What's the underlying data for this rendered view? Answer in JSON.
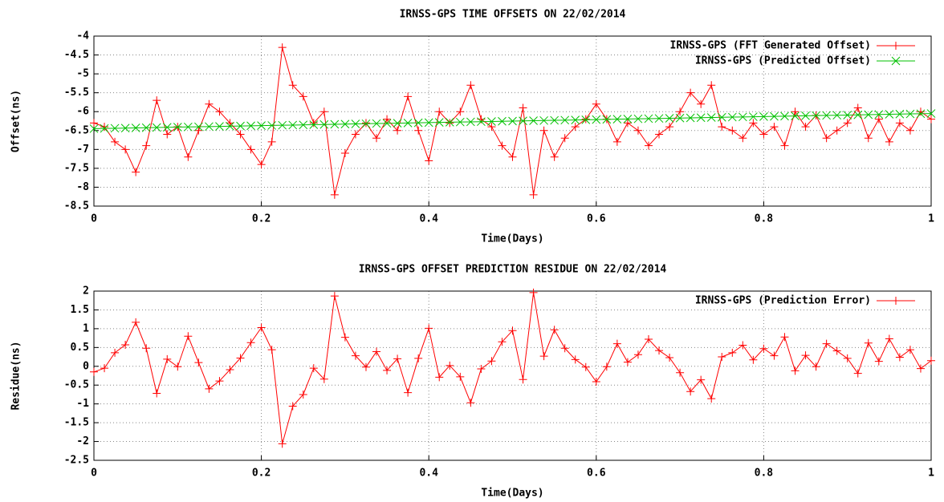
{
  "chart_data": [
    {
      "type": "line",
      "title": "IRNSS-GPS TIME OFFSETS ON 22/02/2014",
      "xlabel": "Time(Days)",
      "ylabel": "Offset(ns)",
      "x": [
        0,
        0.0125,
        0.025,
        0.0375,
        0.05,
        0.0625,
        0.075,
        0.0875,
        0.1,
        0.1125,
        0.125,
        0.1375,
        0.15,
        0.1625,
        0.175,
        0.1875,
        0.2,
        0.2125,
        0.225,
        0.2375,
        0.25,
        0.2625,
        0.275,
        0.2875,
        0.3,
        0.3125,
        0.325,
        0.3375,
        0.35,
        0.3625,
        0.375,
        0.3875,
        0.4,
        0.4125,
        0.425,
        0.4375,
        0.45,
        0.4625,
        0.475,
        0.4875,
        0.5,
        0.5125,
        0.525,
        0.5375,
        0.55,
        0.5625,
        0.575,
        0.5875,
        0.6,
        0.6125,
        0.625,
        0.6375,
        0.65,
        0.6625,
        0.675,
        0.6875,
        0.7,
        0.7125,
        0.725,
        0.7375,
        0.75,
        0.7625,
        0.775,
        0.7875,
        0.8,
        0.8125,
        0.825,
        0.8375,
        0.85,
        0.8625,
        0.875,
        0.8875,
        0.9,
        0.9125,
        0.925,
        0.9375,
        0.95,
        0.9625,
        0.975,
        0.9875,
        1
      ],
      "series": [
        {
          "name": "IRNSS-GPS (FFT Generated Offset)",
          "color": "#ff0000",
          "marker": "+",
          "values": [
            -6.3,
            -6.4,
            -6.8,
            -7.0,
            -7.6,
            -6.9,
            -5.7,
            -6.6,
            -6.4,
            -7.2,
            -6.5,
            -5.8,
            -6.0,
            -6.3,
            -6.6,
            -7.0,
            -7.4,
            -6.8,
            -4.3,
            -5.3,
            -5.6,
            -6.3,
            -6.0,
            -8.2,
            -7.1,
            -6.6,
            -6.3,
            -6.7,
            -6.2,
            -6.5,
            -5.6,
            -6.5,
            -7.3,
            -6.0,
            -6.3,
            -6.0,
            -5.3,
            -6.2,
            -6.4,
            -6.9,
            -7.2,
            -5.9,
            -8.2,
            -6.5,
            -7.2,
            -6.7,
            -6.4,
            -6.2,
            -5.8,
            -6.2,
            -6.8,
            -6.3,
            -6.5,
            -6.9,
            -6.6,
            -6.4,
            -6.0,
            -5.5,
            -5.8,
            -5.3,
            -6.4,
            -6.5,
            -6.7,
            -6.3,
            -6.6,
            -6.4,
            -6.9,
            -6.0,
            -6.4,
            -6.1,
            -6.7,
            -6.5,
            -6.3,
            -5.9,
            -6.7,
            -6.2,
            -6.8,
            -6.3,
            -6.5,
            -6.0,
            -6.2
          ]
        },
        {
          "name": "IRNSS-GPS (Predicted Offset)",
          "color": "#00c000",
          "marker": "x",
          "values": [
            -6.45,
            -6.445,
            -6.44,
            -6.435,
            -6.43,
            -6.425,
            -6.42,
            -6.415,
            -6.41,
            -6.405,
            -6.4,
            -6.395,
            -6.39,
            -6.385,
            -6.38,
            -6.375,
            -6.37,
            -6.365,
            -6.36,
            -6.355,
            -6.35,
            -6.345,
            -6.34,
            -6.335,
            -6.33,
            -6.325,
            -6.32,
            -6.315,
            -6.31,
            -6.305,
            -6.3,
            -6.295,
            -6.29,
            -6.285,
            -6.28,
            -6.275,
            -6.27,
            -6.265,
            -6.26,
            -6.255,
            -6.25,
            -6.245,
            -6.24,
            -6.235,
            -6.23,
            -6.225,
            -6.22,
            -6.215,
            -6.21,
            -6.205,
            -6.2,
            -6.195,
            -6.19,
            -6.185,
            -6.18,
            -6.175,
            -6.17,
            -6.165,
            -6.16,
            -6.155,
            -6.15,
            -6.145,
            -6.14,
            -6.135,
            -6.13,
            -6.125,
            -6.12,
            -6.115,
            -6.11,
            -6.105,
            -6.1,
            -6.095,
            -6.09,
            -6.085,
            -6.08,
            -6.075,
            -6.07,
            -6.065,
            -6.06,
            -6.055,
            -6.05
          ]
        }
      ],
      "xlim": [
        0,
        1
      ],
      "xticks": [
        0,
        0.2,
        0.4,
        0.6,
        0.8,
        1
      ],
      "ylim": [
        -8.5,
        -4
      ],
      "yticks": [
        -8.5,
        -8,
        -7.5,
        -7,
        -6.5,
        -6,
        -5.5,
        -5,
        -4.5,
        -4
      ],
      "grid": true,
      "legend": "upper right"
    },
    {
      "type": "line",
      "title": "IRNSS-GPS OFFSET PREDICTION RESIDUE ON 22/02/2014",
      "xlabel": "Time(Days)",
      "ylabel": "Residue(ns)",
      "x": [
        0,
        0.0125,
        0.025,
        0.0375,
        0.05,
        0.0625,
        0.075,
        0.0875,
        0.1,
        0.1125,
        0.125,
        0.1375,
        0.15,
        0.1625,
        0.175,
        0.1875,
        0.2,
        0.2125,
        0.225,
        0.2375,
        0.25,
        0.2625,
        0.275,
        0.2875,
        0.3,
        0.3125,
        0.325,
        0.3375,
        0.35,
        0.3625,
        0.375,
        0.3875,
        0.4,
        0.4125,
        0.425,
        0.4375,
        0.45,
        0.4625,
        0.475,
        0.4875,
        0.5,
        0.5125,
        0.525,
        0.5375,
        0.55,
        0.5625,
        0.575,
        0.5875,
        0.6,
        0.6125,
        0.625,
        0.6375,
        0.65,
        0.6625,
        0.675,
        0.6875,
        0.7,
        0.7125,
        0.725,
        0.7375,
        0.75,
        0.7625,
        0.775,
        0.7875,
        0.8,
        0.8125,
        0.825,
        0.8375,
        0.85,
        0.8625,
        0.875,
        0.8875,
        0.9,
        0.9125,
        0.925,
        0.9375,
        0.95,
        0.9625,
        0.975,
        0.9875,
        1
      ],
      "series": [
        {
          "name": "IRNSS-GPS (Prediction Error)",
          "color": "#ff0000",
          "marker": "+",
          "values": [
            -0.15,
            -0.05,
            0.36,
            0.57,
            1.17,
            0.48,
            -0.72,
            0.19,
            -0.01,
            0.8,
            0.1,
            -0.6,
            -0.39,
            -0.09,
            0.22,
            0.63,
            1.03,
            0.44,
            -2.06,
            -1.06,
            -0.75,
            -0.05,
            -0.34,
            1.87,
            0.77,
            0.28,
            -0.02,
            0.39,
            -0.11,
            0.2,
            -0.7,
            0.21,
            1.01,
            -0.29,
            0.02,
            -0.28,
            -0.97,
            -0.07,
            0.14,
            0.65,
            0.95,
            -0.35,
            1.96,
            0.27,
            0.97,
            0.48,
            0.18,
            -0.02,
            -0.41,
            -0.01,
            0.6,
            0.11,
            0.31,
            0.72,
            0.42,
            0.23,
            -0.17,
            -0.67,
            -0.36,
            -0.86,
            0.25,
            0.36,
            0.56,
            0.17,
            0.47,
            0.28,
            0.78,
            -0.12,
            0.29,
            -0.01,
            0.6,
            0.41,
            0.21,
            -0.19,
            0.62,
            0.13,
            0.73,
            0.24,
            0.44,
            -0.06,
            0.15
          ]
        }
      ],
      "xlim": [
        0,
        1
      ],
      "xticks": [
        0,
        0.2,
        0.4,
        0.6,
        0.8,
        1
      ],
      "ylim": [
        -2.5,
        2
      ],
      "yticks": [
        -2.5,
        -2,
        -1.5,
        -1,
        -0.5,
        0,
        0.5,
        1,
        1.5,
        2
      ],
      "grid": true,
      "legend": "upper right"
    }
  ]
}
